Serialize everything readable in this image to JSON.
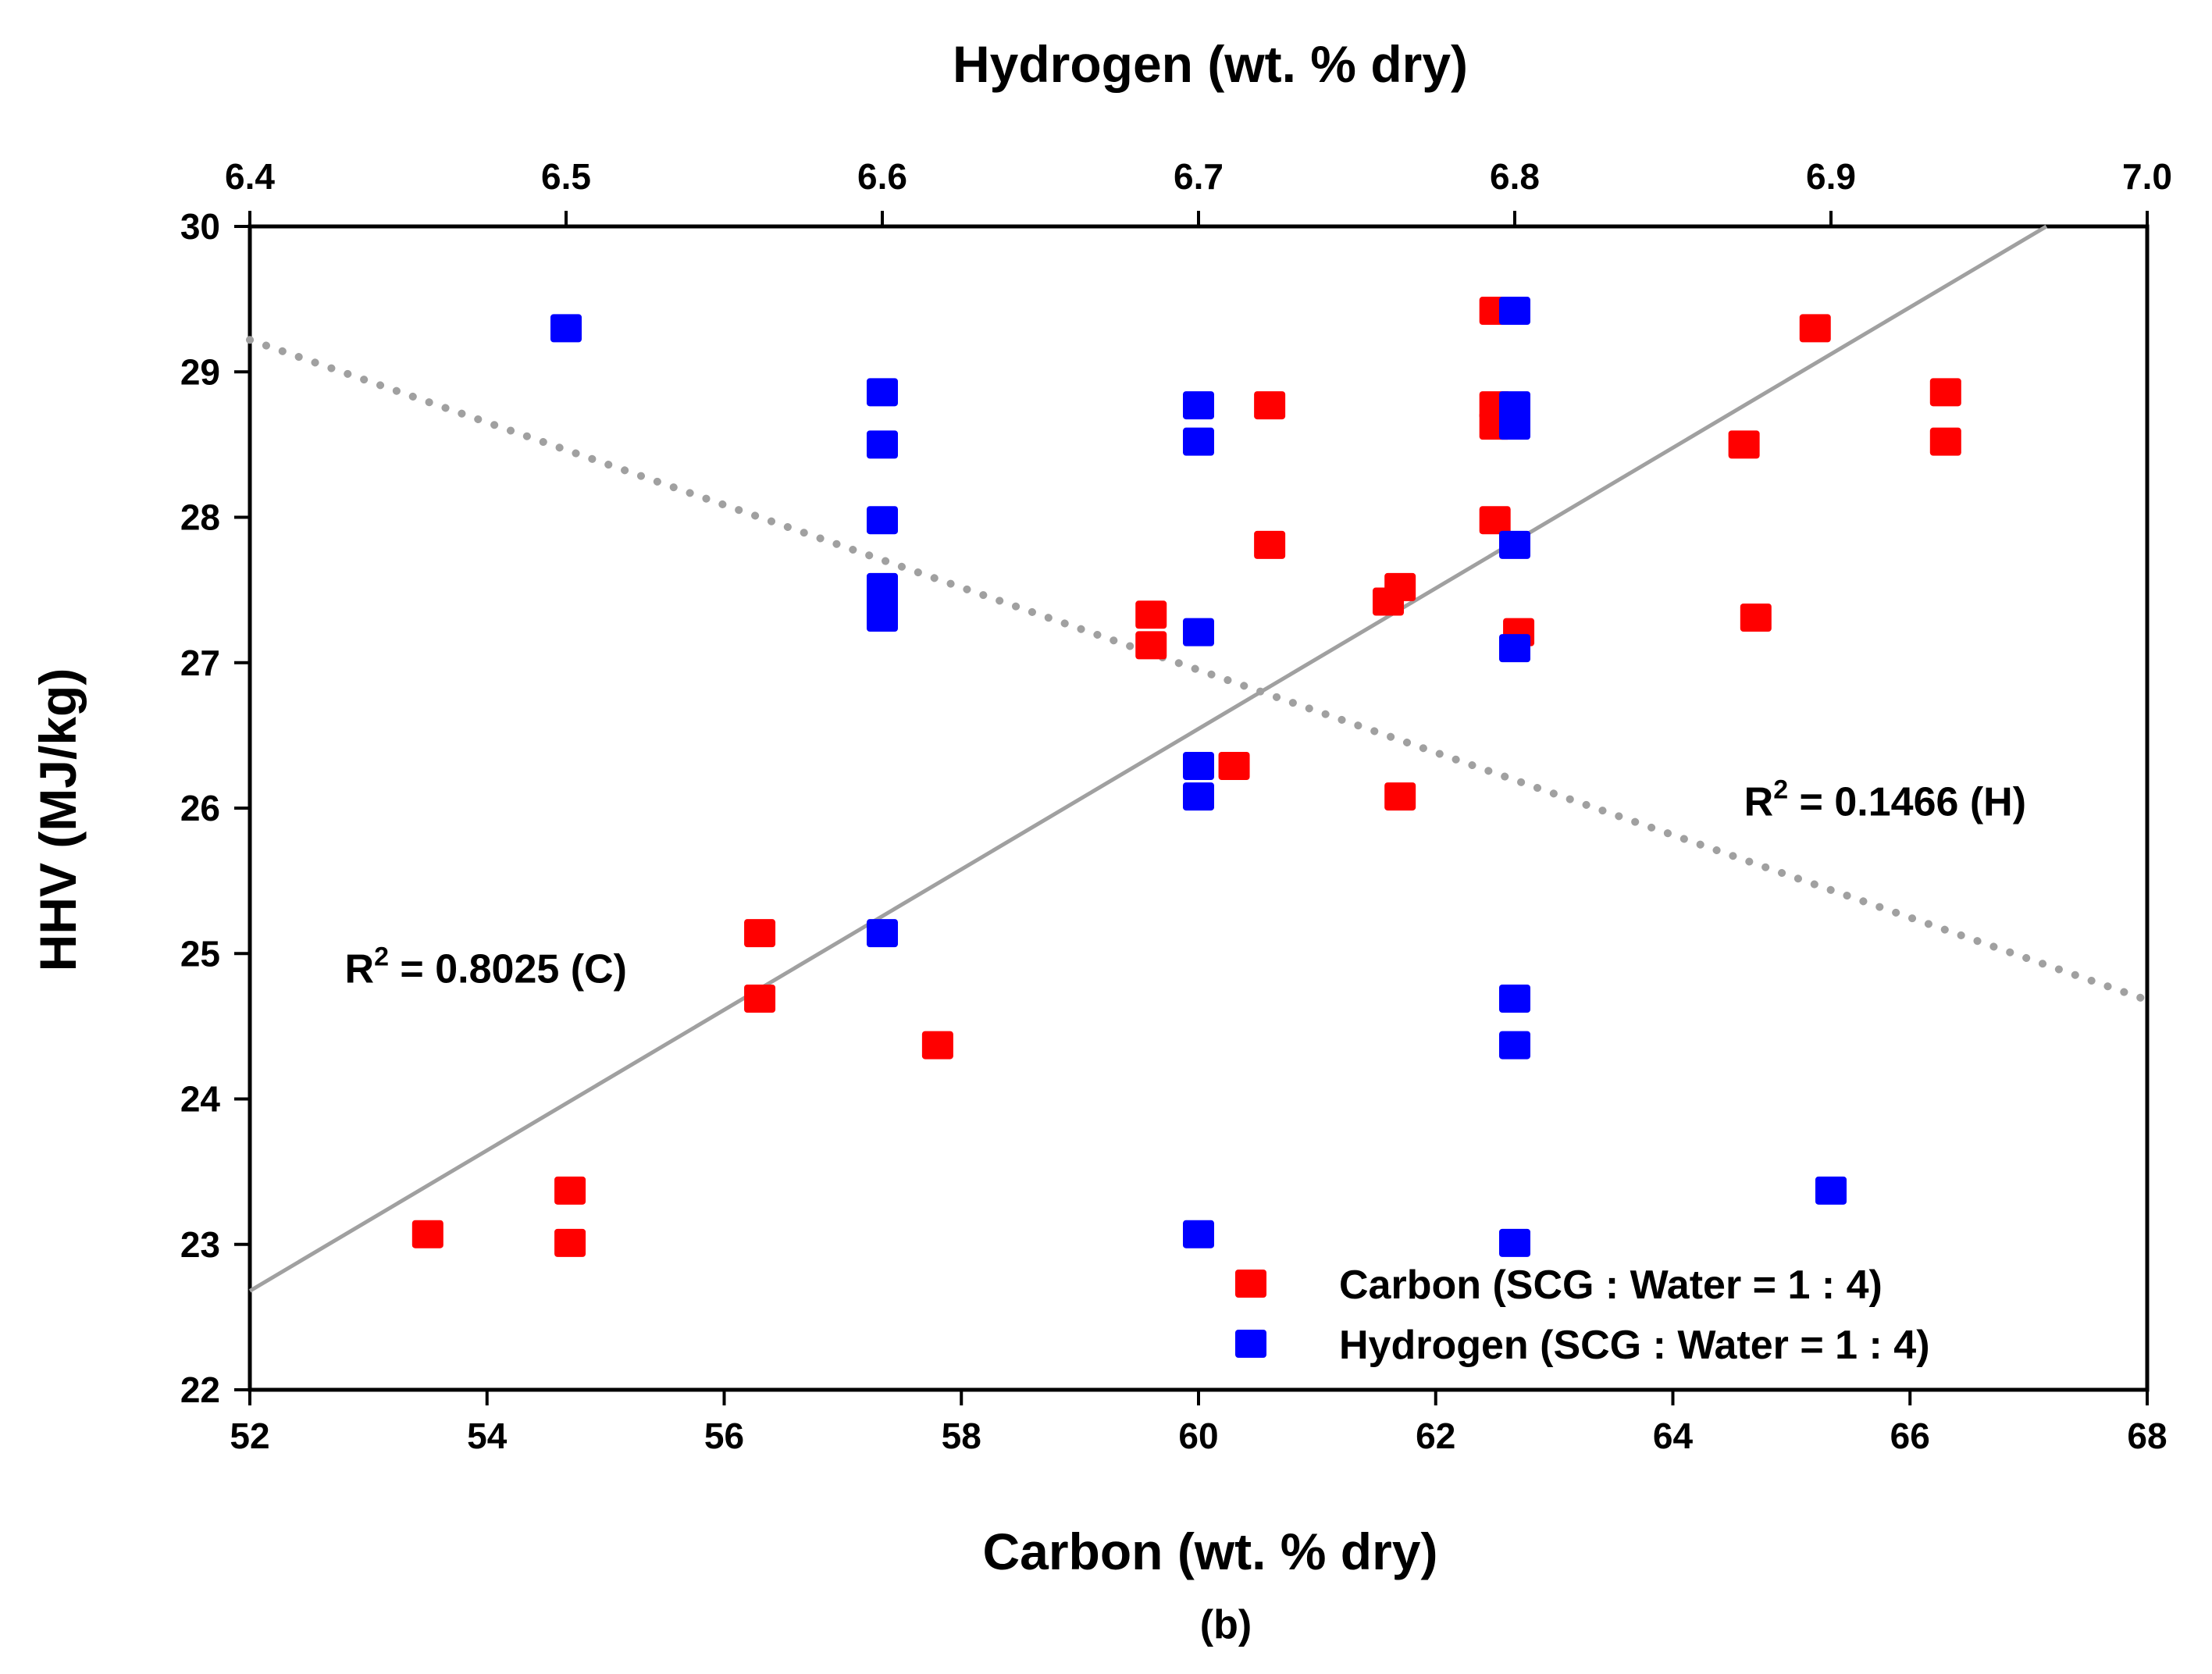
{
  "chart_data": {
    "type": "scatter",
    "title": "",
    "caption": "(b)",
    "xlabel": "Carbon (wt. % dry)",
    "x2label": "Hydrogen (wt. % dry)",
    "ylabel": "HHV (MJ/kg)",
    "xlim": [
      52,
      68
    ],
    "x2lim": [
      6.4,
      7.0
    ],
    "ylim": [
      22,
      30
    ],
    "x_ticks": [
      "52",
      "54",
      "56",
      "58",
      "60",
      "62",
      "64",
      "66",
      "68"
    ],
    "x2_ticks": [
      "6.4",
      "6.5",
      "6.6",
      "6.7",
      "6.8",
      "6.9",
      "7.0"
    ],
    "y_ticks": [
      "22",
      "23",
      "24",
      "25",
      "26",
      "27",
      "28",
      "29",
      "30"
    ],
    "grid": false,
    "legend_position": "bottom-right",
    "colors": {
      "carbon": "#ff0000",
      "hydrogen": "#0000ff",
      "trend": "#a0a0a0"
    },
    "series": [
      {
        "name": "Carbon (SCG : Water = 1 : 4)",
        "axis": "bottom",
        "color": "#ff0000",
        "points": [
          [
            53.5,
            23.07
          ],
          [
            54.7,
            23.37
          ],
          [
            54.7,
            23.01
          ],
          [
            56.3,
            25.14
          ],
          [
            56.3,
            24.69
          ],
          [
            57.8,
            24.37
          ],
          [
            59.6,
            27.33
          ],
          [
            59.6,
            27.12
          ],
          [
            60.3,
            26.29
          ],
          [
            60.6,
            28.77
          ],
          [
            60.6,
            27.81
          ],
          [
            61.6,
            27.42
          ],
          [
            61.7,
            27.52
          ],
          [
            61.7,
            26.08
          ],
          [
            62.5,
            29.42
          ],
          [
            62.5,
            28.77
          ],
          [
            62.5,
            28.63
          ],
          [
            62.5,
            27.98
          ],
          [
            62.7,
            27.21
          ],
          [
            64.6,
            28.5
          ],
          [
            64.7,
            27.31
          ],
          [
            65.2,
            29.3
          ],
          [
            66.3,
            28.86
          ],
          [
            66.3,
            28.52
          ]
        ]
      },
      {
        "name": "Hydrogen (SCG : Water = 1 : 4)",
        "axis": "top",
        "color": "#0000ff",
        "points": [
          [
            6.5,
            29.3
          ],
          [
            6.6,
            28.86
          ],
          [
            6.6,
            28.5
          ],
          [
            6.6,
            27.98
          ],
          [
            6.6,
            27.52
          ],
          [
            6.6,
            27.42
          ],
          [
            6.6,
            27.31
          ],
          [
            6.6,
            25.14
          ],
          [
            6.7,
            28.77
          ],
          [
            6.7,
            28.52
          ],
          [
            6.7,
            27.21
          ],
          [
            6.7,
            26.29
          ],
          [
            6.7,
            26.08
          ],
          [
            6.7,
            23.07
          ],
          [
            6.8,
            29.42
          ],
          [
            6.8,
            28.77
          ],
          [
            6.8,
            28.63
          ],
          [
            6.8,
            27.81
          ],
          [
            6.8,
            27.1
          ],
          [
            6.8,
            24.69
          ],
          [
            6.8,
            24.37
          ],
          [
            6.8,
            23.01
          ],
          [
            6.9,
            23.37
          ]
        ]
      }
    ],
    "trendlines": [
      {
        "name": "carbon-fit",
        "axis": "bottom",
        "style": "solid",
        "from": [
          52,
          22.68
        ],
        "to": [
          67.15,
          30.0
        ]
      },
      {
        "name": "hydrogen-fit",
        "axis": "top",
        "style": "dotted",
        "from": [
          6.4,
          29.22
        ],
        "to": [
          7.0,
          24.68
        ]
      }
    ],
    "annotations": [
      {
        "name": "r2-carbon",
        "prefix": "R",
        "sup": "2",
        "text": " = 0.8025 (C)",
        "x": 52.8,
        "y": 24.8
      },
      {
        "name": "r2-hydrogen",
        "prefix": "R",
        "sup": "2",
        "text": " = 0.1466 (H)",
        "x": 64.6,
        "y": 25.95
      }
    ]
  }
}
